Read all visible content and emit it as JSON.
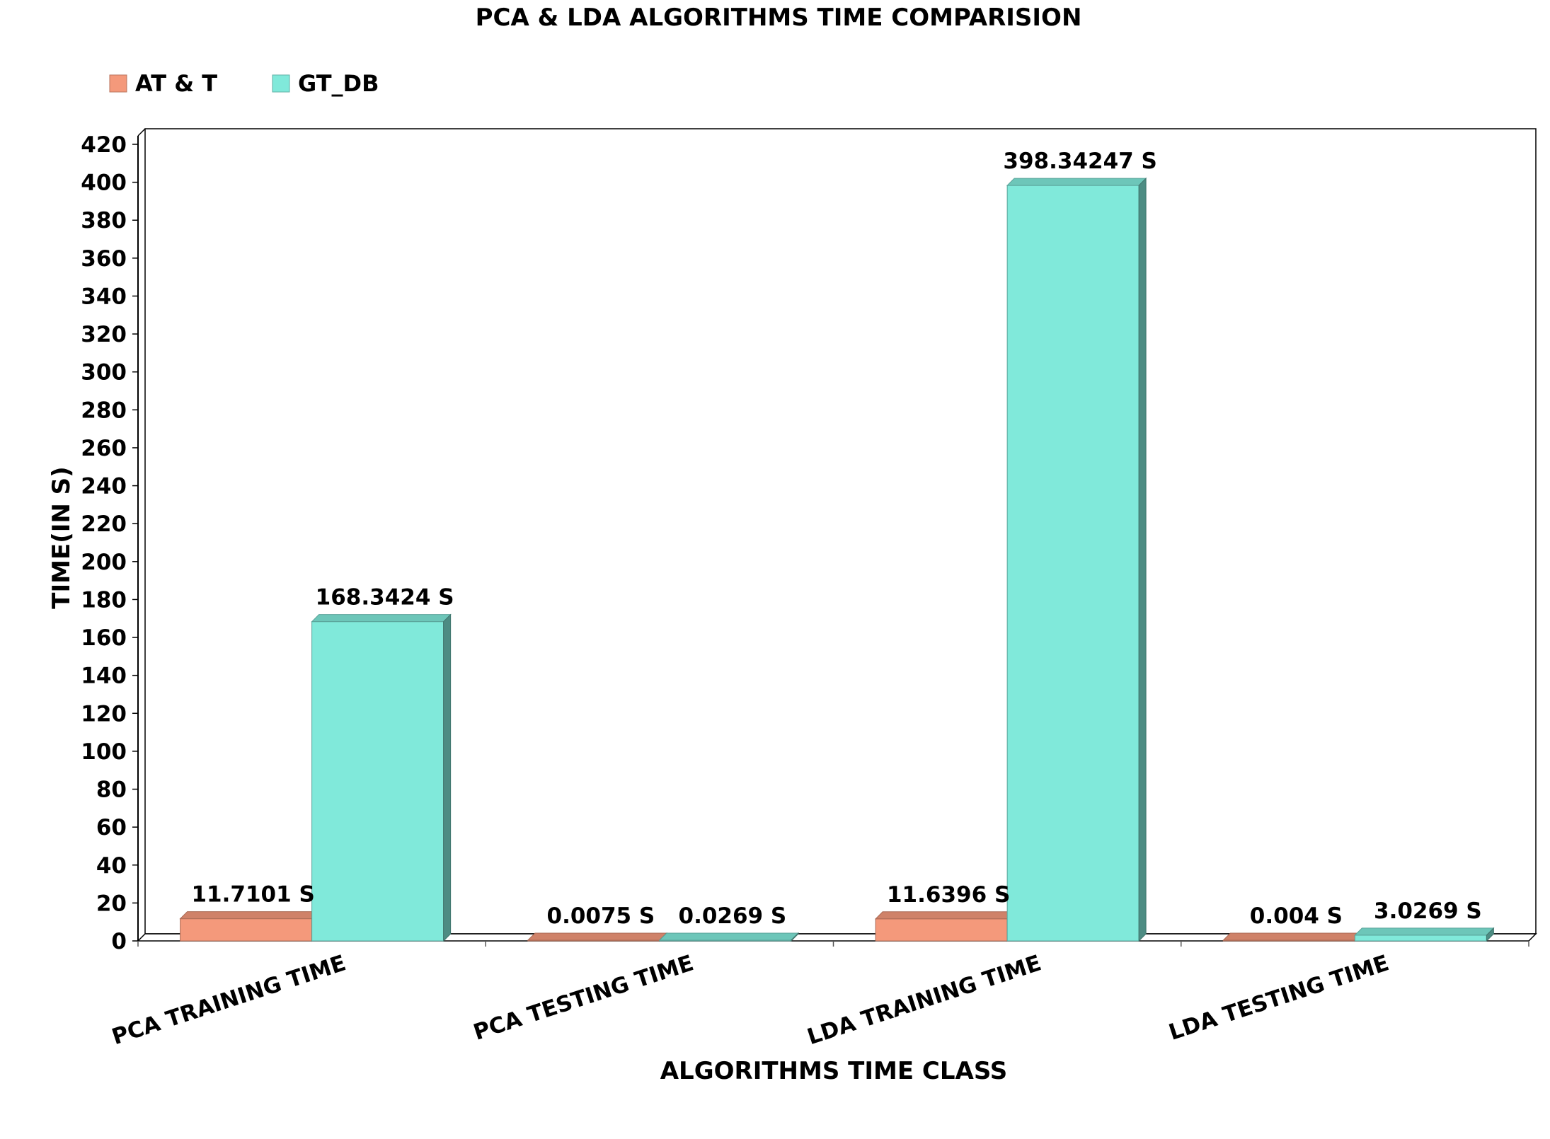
{
  "chart_data": {
    "type": "bar",
    "title": "PCA & LDA ALGORITHMS TIME COMPARISION",
    "xlabel": "ALGORITHMS TIME CLASS",
    "ylabel": "TIME(IN S)",
    "categories": [
      "PCA TRAINING TIME",
      "PCA TESTING TIME",
      "LDA TRAINING TIME",
      "LDA TESTING TIME"
    ],
    "series": [
      {
        "name": "AT & T",
        "color": "#f4997b",
        "values": [
          11.7101,
          0.0075,
          11.6396,
          0.004
        ],
        "labels": [
          "11.7101 S",
          "0.0075 S",
          "11.6396 S",
          "0.004 S"
        ]
      },
      {
        "name": "GT_DB",
        "color": "#80e9da",
        "values": [
          168.3424,
          0.0269,
          398.34247,
          3.0269
        ],
        "labels": [
          "168.3424 S",
          "0.0269 S",
          "398.34247 S",
          "3.0269 S"
        ]
      }
    ],
    "yticks": [
      0,
      20,
      40,
      60,
      80,
      100,
      120,
      140,
      160,
      180,
      200,
      220,
      240,
      260,
      280,
      300,
      320,
      340,
      360,
      380,
      400,
      420
    ],
    "ylim": [
      0,
      420
    ],
    "legend_position": "top-left",
    "grid": false,
    "style": "3d-bars"
  }
}
